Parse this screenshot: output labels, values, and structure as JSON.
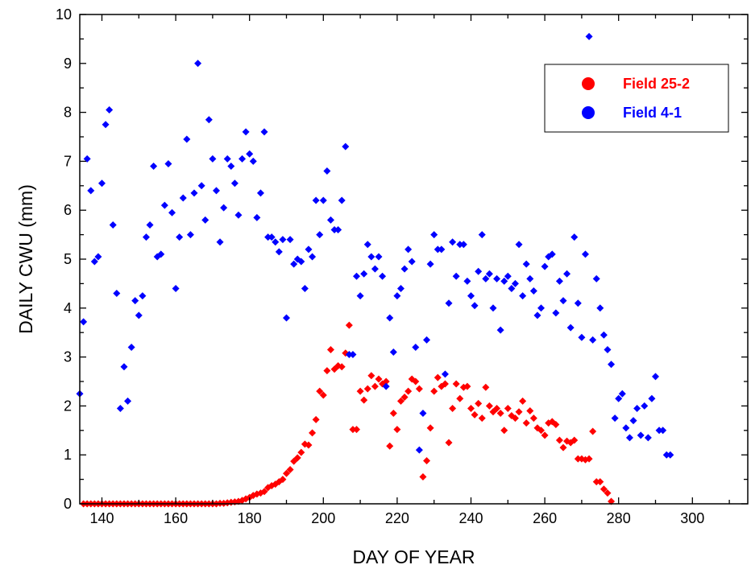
{
  "chart_data": {
    "type": "scatter",
    "xlabel": "DAY OF YEAR",
    "ylabel": "DAILY CWU (mm)",
    "xlim": [
      134,
      315
    ],
    "ylim": [
      0,
      10
    ],
    "xticks": [
      140,
      160,
      180,
      200,
      220,
      240,
      260,
      280,
      300
    ],
    "yticks": [
      0,
      1,
      2,
      3,
      4,
      5,
      6,
      7,
      8,
      9,
      10
    ],
    "legend_position": "top-right",
    "grid": false,
    "series": [
      {
        "name": "Field 25-2",
        "color": "#ff0000",
        "points": [
          [
            135,
            0
          ],
          [
            136,
            0
          ],
          [
            137,
            0
          ],
          [
            138,
            0
          ],
          [
            139,
            0
          ],
          [
            140,
            0
          ],
          [
            141,
            0
          ],
          [
            142,
            0
          ],
          [
            143,
            0
          ],
          [
            144,
            0
          ],
          [
            145,
            0
          ],
          [
            146,
            0
          ],
          [
            147,
            0
          ],
          [
            148,
            0
          ],
          [
            149,
            0
          ],
          [
            150,
            0
          ],
          [
            151,
            0
          ],
          [
            152,
            0
          ],
          [
            153,
            0
          ],
          [
            154,
            0
          ],
          [
            155,
            0
          ],
          [
            156,
            0
          ],
          [
            157,
            0
          ],
          [
            158,
            0
          ],
          [
            159,
            0
          ],
          [
            160,
            0
          ],
          [
            161,
            0
          ],
          [
            162,
            0
          ],
          [
            163,
            0
          ],
          [
            164,
            0
          ],
          [
            165,
            0
          ],
          [
            166,
            0
          ],
          [
            167,
            0
          ],
          [
            168,
            0
          ],
          [
            169,
            0
          ],
          [
            170,
            0
          ],
          [
            171,
            0
          ],
          [
            172,
            0.01
          ],
          [
            173,
            0.01
          ],
          [
            174,
            0.02
          ],
          [
            175,
            0.03
          ],
          [
            176,
            0.04
          ],
          [
            177,
            0.05
          ],
          [
            178,
            0.07
          ],
          [
            179,
            0.1
          ],
          [
            180,
            0.13
          ],
          [
            181,
            0.17
          ],
          [
            182,
            0.2
          ],
          [
            183,
            0.22
          ],
          [
            184,
            0.25
          ],
          [
            185,
            0.33
          ],
          [
            186,
            0.37
          ],
          [
            187,
            0.4
          ],
          [
            188,
            0.45
          ],
          [
            189,
            0.5
          ],
          [
            190,
            0.62
          ],
          [
            191,
            0.7
          ],
          [
            192,
            0.87
          ],
          [
            193,
            0.94
          ],
          [
            194,
            1.05
          ],
          [
            195,
            1.22
          ],
          [
            196,
            1.2
          ],
          [
            197,
            1.45
          ],
          [
            198,
            1.72
          ],
          [
            199,
            2.3
          ],
          [
            200,
            2.22
          ],
          [
            201,
            2.72
          ],
          [
            202,
            3.15
          ],
          [
            203,
            2.75
          ],
          [
            204,
            2.82
          ],
          [
            205,
            2.8
          ],
          [
            206,
            3.08
          ],
          [
            207,
            3.65
          ],
          [
            208,
            1.52
          ],
          [
            209,
            1.52
          ],
          [
            210,
            2.3
          ],
          [
            211,
            2.12
          ],
          [
            212,
            2.35
          ],
          [
            213,
            2.62
          ],
          [
            214,
            2.4
          ],
          [
            215,
            2.55
          ],
          [
            216,
            2.45
          ],
          [
            217,
            2.5
          ],
          [
            218,
            1.18
          ],
          [
            219,
            1.85
          ],
          [
            220,
            1.52
          ],
          [
            221,
            2.1
          ],
          [
            222,
            2.18
          ],
          [
            223,
            2.3
          ],
          [
            224,
            2.55
          ],
          [
            225,
            2.5
          ],
          [
            226,
            2.35
          ],
          [
            227,
            0.55
          ],
          [
            228,
            0.88
          ],
          [
            229,
            1.55
          ],
          [
            230,
            2.3
          ],
          [
            231,
            2.58
          ],
          [
            232,
            2.4
          ],
          [
            233,
            2.45
          ],
          [
            234,
            1.25
          ],
          [
            235,
            1.95
          ],
          [
            236,
            2.45
          ],
          [
            237,
            2.15
          ],
          [
            238,
            2.38
          ],
          [
            239,
            2.4
          ],
          [
            240,
            1.95
          ],
          [
            241,
            1.82
          ],
          [
            242,
            2.05
          ],
          [
            243,
            1.75
          ],
          [
            244,
            2.38
          ],
          [
            245,
            2.0
          ],
          [
            246,
            1.88
          ],
          [
            247,
            1.95
          ],
          [
            248,
            1.85
          ],
          [
            249,
            1.5
          ],
          [
            250,
            1.95
          ],
          [
            251,
            1.8
          ],
          [
            252,
            1.75
          ],
          [
            253,
            1.88
          ],
          [
            254,
            2.1
          ],
          [
            255,
            1.65
          ],
          [
            256,
            1.9
          ],
          [
            257,
            1.75
          ],
          [
            258,
            1.55
          ],
          [
            259,
            1.5
          ],
          [
            260,
            1.4
          ],
          [
            261,
            1.65
          ],
          [
            262,
            1.68
          ],
          [
            263,
            1.62
          ],
          [
            264,
            1.3
          ],
          [
            265,
            1.15
          ],
          [
            266,
            1.28
          ],
          [
            267,
            1.25
          ],
          [
            268,
            1.3
          ],
          [
            269,
            0.92
          ],
          [
            270,
            0.92
          ],
          [
            271,
            0.9
          ],
          [
            272,
            0.92
          ],
          [
            273,
            1.48
          ],
          [
            274,
            0.45
          ],
          [
            275,
            0.45
          ],
          [
            276,
            0.3
          ],
          [
            277,
            0.22
          ],
          [
            278,
            0.05
          ]
        ]
      },
      {
        "name": "Field 4-1",
        "color": "#0000ff",
        "points": [
          [
            134,
            2.25
          ],
          [
            135,
            3.72
          ],
          [
            136,
            7.05
          ],
          [
            137,
            6.4
          ],
          [
            138,
            4.95
          ],
          [
            139,
            5.05
          ],
          [
            140,
            6.55
          ],
          [
            141,
            7.75
          ],
          [
            142,
            8.05
          ],
          [
            143,
            5.7
          ],
          [
            144,
            4.3
          ],
          [
            145,
            1.95
          ],
          [
            146,
            2.8
          ],
          [
            147,
            2.1
          ],
          [
            148,
            3.2
          ],
          [
            149,
            4.15
          ],
          [
            150,
            3.85
          ],
          [
            151,
            4.25
          ],
          [
            152,
            5.45
          ],
          [
            153,
            5.7
          ],
          [
            154,
            6.9
          ],
          [
            155,
            5.05
          ],
          [
            156,
            5.1
          ],
          [
            157,
            6.1
          ],
          [
            158,
            6.95
          ],
          [
            159,
            5.95
          ],
          [
            160,
            4.4
          ],
          [
            161,
            5.45
          ],
          [
            162,
            6.25
          ],
          [
            163,
            7.45
          ],
          [
            164,
            5.5
          ],
          [
            165,
            6.35
          ],
          [
            166,
            9.0
          ],
          [
            167,
            6.5
          ],
          [
            168,
            5.8
          ],
          [
            169,
            7.85
          ],
          [
            170,
            7.05
          ],
          [
            171,
            6.4
          ],
          [
            172,
            5.35
          ],
          [
            173,
            6.05
          ],
          [
            174,
            7.05
          ],
          [
            175,
            6.9
          ],
          [
            176,
            6.55
          ],
          [
            177,
            5.9
          ],
          [
            178,
            7.05
          ],
          [
            179,
            7.6
          ],
          [
            180,
            7.15
          ],
          [
            181,
            7.0
          ],
          [
            182,
            5.85
          ],
          [
            183,
            6.35
          ],
          [
            184,
            7.6
          ],
          [
            185,
            5.45
          ],
          [
            186,
            5.45
          ],
          [
            187,
            5.35
          ],
          [
            188,
            5.15
          ],
          [
            189,
            5.4
          ],
          [
            190,
            3.8
          ],
          [
            191,
            5.4
          ],
          [
            192,
            4.9
          ],
          [
            193,
            5.0
          ],
          [
            194,
            4.95
          ],
          [
            195,
            4.4
          ],
          [
            196,
            5.2
          ],
          [
            197,
            5.05
          ],
          [
            198,
            6.2
          ],
          [
            199,
            5.5
          ],
          [
            200,
            6.2
          ],
          [
            201,
            6.8
          ],
          [
            202,
            5.8
          ],
          [
            203,
            5.6
          ],
          [
            204,
            5.6
          ],
          [
            205,
            6.2
          ],
          [
            206,
            7.3
          ],
          [
            207,
            3.05
          ],
          [
            208,
            3.05
          ],
          [
            209,
            4.65
          ],
          [
            210,
            4.25
          ],
          [
            211,
            4.7
          ],
          [
            212,
            5.3
          ],
          [
            213,
            5.05
          ],
          [
            214,
            4.8
          ],
          [
            215,
            5.05
          ],
          [
            216,
            4.65
          ],
          [
            217,
            2.4
          ],
          [
            218,
            3.8
          ],
          [
            219,
            3.1
          ],
          [
            220,
            4.25
          ],
          [
            221,
            4.4
          ],
          [
            222,
            4.8
          ],
          [
            223,
            5.2
          ],
          [
            224,
            4.95
          ],
          [
            225,
            3.2
          ],
          [
            226,
            1.1
          ],
          [
            227,
            1.85
          ],
          [
            228,
            3.35
          ],
          [
            229,
            4.9
          ],
          [
            230,
            5.5
          ],
          [
            231,
            5.2
          ],
          [
            232,
            5.2
          ],
          [
            233,
            2.65
          ],
          [
            234,
            4.1
          ],
          [
            235,
            5.35
          ],
          [
            236,
            4.65
          ],
          [
            237,
            5.3
          ],
          [
            238,
            5.3
          ],
          [
            239,
            4.55
          ],
          [
            240,
            4.25
          ],
          [
            241,
            4.05
          ],
          [
            242,
            4.75
          ],
          [
            243,
            5.5
          ],
          [
            244,
            4.6
          ],
          [
            245,
            4.7
          ],
          [
            246,
            4.0
          ],
          [
            247,
            4.6
          ],
          [
            248,
            3.55
          ],
          [
            249,
            4.55
          ],
          [
            250,
            4.65
          ],
          [
            251,
            4.4
          ],
          [
            252,
            4.5
          ],
          [
            253,
            5.3
          ],
          [
            254,
            4.25
          ],
          [
            255,
            4.9
          ],
          [
            256,
            4.6
          ],
          [
            257,
            4.35
          ],
          [
            258,
            3.85
          ],
          [
            259,
            4.0
          ],
          [
            260,
            4.85
          ],
          [
            261,
            5.05
          ],
          [
            262,
            5.1
          ],
          [
            263,
            3.9
          ],
          [
            264,
            4.55
          ],
          [
            265,
            4.15
          ],
          [
            266,
            4.7
          ],
          [
            267,
            3.6
          ],
          [
            268,
            5.45
          ],
          [
            269,
            4.1
          ],
          [
            270,
            3.4
          ],
          [
            271,
            5.1
          ],
          [
            272,
            9.55
          ],
          [
            273,
            3.35
          ],
          [
            274,
            4.6
          ],
          [
            275,
            4.0
          ],
          [
            276,
            3.45
          ],
          [
            277,
            3.15
          ],
          [
            278,
            2.85
          ],
          [
            279,
            1.75
          ],
          [
            280,
            2.15
          ],
          [
            281,
            2.25
          ],
          [
            282,
            1.55
          ],
          [
            283,
            1.35
          ],
          [
            284,
            1.7
          ],
          [
            285,
            1.95
          ],
          [
            286,
            1.4
          ],
          [
            287,
            2.0
          ],
          [
            288,
            1.35
          ],
          [
            289,
            2.15
          ],
          [
            290,
            2.6
          ],
          [
            291,
            1.5
          ],
          [
            292,
            1.5
          ],
          [
            293,
            1.0
          ],
          [
            294,
            1.0
          ]
        ]
      }
    ]
  }
}
